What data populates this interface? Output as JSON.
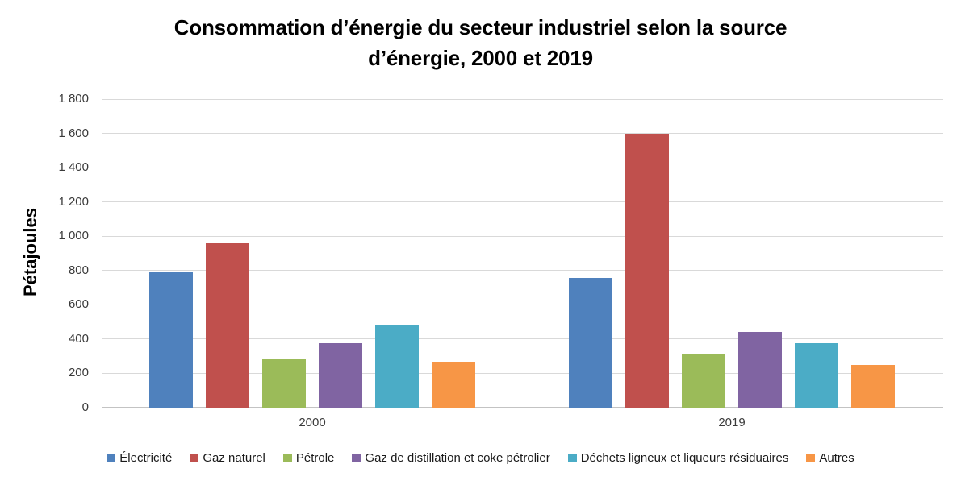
{
  "chart_data": {
    "type": "bar",
    "title": "Consommation d’énergie du secteur industriel selon la source\nd’énergie, 2000 et 2019",
    "ylabel": "Pétajoules",
    "xlabel": "",
    "categories": [
      "2000",
      "2019"
    ],
    "series": [
      {
        "name": "Électricité",
        "color": "#4F81BD",
        "values": [
          795,
          755
        ]
      },
      {
        "name": "Gaz naturel",
        "color": "#C0504D",
        "values": [
          960,
          1600
        ]
      },
      {
        "name": "Pétrole",
        "color": "#9BBB59",
        "values": [
          285,
          310
        ]
      },
      {
        "name": "Gaz de distillation et coke pétrolier",
        "color": "#8064A2",
        "values": [
          375,
          440
        ]
      },
      {
        "name": "Déchets ligneux et liqueurs résiduaires",
        "color": "#4BACC6",
        "values": [
          480,
          375
        ]
      },
      {
        "name": "Autres",
        "color": "#F79646",
        "values": [
          270,
          250
        ]
      }
    ],
    "ylim": [
      0,
      1800
    ],
    "ytick_step": 200,
    "ytick_labels": [
      "0",
      "200",
      "400",
      "600",
      "800",
      "1 000",
      "1 200",
      "1 400",
      "1 600",
      "1 800"
    ],
    "grid": true,
    "legend_position": "bottom",
    "gridline_color": "#D9D9D9",
    "axis_color": "#C3C3C3"
  }
}
